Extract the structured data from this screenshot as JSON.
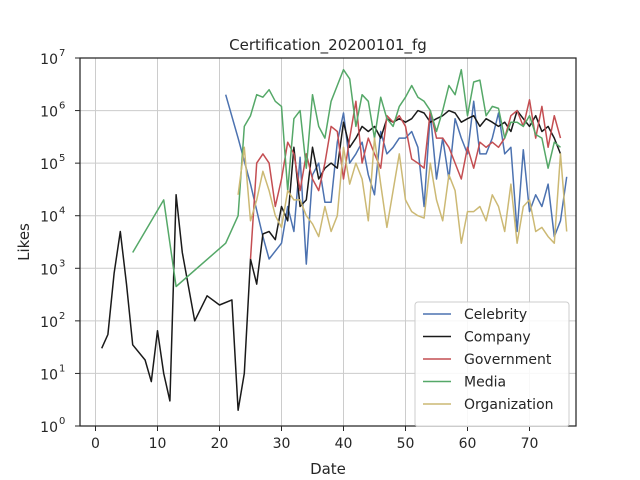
{
  "chart_data": {
    "type": "line",
    "title": "Certification_20200101_fg",
    "xlabel": "Date",
    "ylabel": "Likes",
    "yscale": "log",
    "xlim": [
      -2.5,
      77.5
    ],
    "ylim": [
      1,
      10000000
    ],
    "x_ticks": [
      0,
      10,
      20,
      30,
      40,
      50,
      60,
      70
    ],
    "y_ticks": [
      1,
      10,
      100,
      1000,
      10000,
      100000,
      1000000,
      10000000
    ],
    "y_tick_labels": [
      "10",
      "10",
      "10",
      "10",
      "10",
      "10",
      "10",
      "10"
    ],
    "y_tick_exponents": [
      "0",
      "1",
      "2",
      "3",
      "4",
      "5",
      "6",
      "7"
    ],
    "grid": true,
    "legend_position": "lower-right",
    "series": [
      {
        "name": "Celebrity",
        "color": "#4c72b0",
        "points": [
          [
            21,
            2000000
          ],
          [
            23,
            300000
          ],
          [
            25,
            40000
          ],
          [
            27,
            4000
          ],
          [
            28,
            1500
          ],
          [
            30,
            3000
          ],
          [
            31,
            15000
          ],
          [
            32,
            5000
          ],
          [
            33,
            130000
          ],
          [
            34,
            1200
          ],
          [
            35,
            60000
          ],
          [
            36,
            100000
          ],
          [
            37,
            18000
          ],
          [
            38,
            18000
          ],
          [
            39,
            250000
          ],
          [
            40,
            900000
          ],
          [
            41,
            100000
          ],
          [
            42,
            150000
          ],
          [
            43,
            250000
          ],
          [
            44,
            60000
          ],
          [
            45,
            25000
          ],
          [
            46,
            400000
          ],
          [
            47,
            150000
          ],
          [
            48,
            200000
          ],
          [
            49,
            300000
          ],
          [
            50,
            300000
          ],
          [
            51,
            400000
          ],
          [
            52,
            200000
          ],
          [
            53,
            15000
          ],
          [
            54,
            900000
          ],
          [
            55,
            50000
          ],
          [
            56,
            300000
          ],
          [
            57,
            50000
          ],
          [
            58,
            700000
          ],
          [
            59,
            300000
          ],
          [
            60,
            150000
          ],
          [
            61,
            1500000
          ],
          [
            62,
            150000
          ],
          [
            63,
            150000
          ],
          [
            64,
            300000
          ],
          [
            65,
            900000
          ],
          [
            66,
            150000
          ],
          [
            67,
            200000
          ],
          [
            68,
            5000
          ],
          [
            69,
            180000
          ],
          [
            70,
            12000
          ],
          [
            71,
            25000
          ],
          [
            72,
            15000
          ],
          [
            73,
            40000
          ],
          [
            74,
            4000
          ],
          [
            75,
            8000
          ],
          [
            76,
            55000
          ]
        ]
      },
      {
        "name": "Company",
        "color": "#1a1a1a",
        "points": [
          [
            1,
            30
          ],
          [
            2,
            55
          ],
          [
            3,
            800
          ],
          [
            4,
            5000
          ],
          [
            5,
            500
          ],
          [
            6,
            35
          ],
          [
            8,
            18
          ],
          [
            9,
            7
          ],
          [
            10,
            65
          ],
          [
            11,
            10
          ],
          [
            12,
            3
          ],
          [
            13,
            25000
          ],
          [
            14,
            2000
          ],
          [
            16,
            100
          ],
          [
            18,
            300
          ],
          [
            20,
            200
          ],
          [
            22,
            250
          ],
          [
            23,
            2
          ],
          [
            24,
            10
          ],
          [
            25,
            1500
          ],
          [
            26,
            500
          ],
          [
            27,
            4500
          ],
          [
            28,
            5000
          ],
          [
            29,
            3500
          ],
          [
            30,
            15000
          ],
          [
            31,
            8000
          ],
          [
            32,
            200000
          ],
          [
            33,
            15000
          ],
          [
            34,
            20000
          ],
          [
            35,
            200000
          ],
          [
            36,
            50000
          ],
          [
            37,
            80000
          ],
          [
            38,
            100000
          ],
          [
            39,
            80000
          ],
          [
            40,
            600000
          ],
          [
            41,
            200000
          ],
          [
            42,
            300000
          ],
          [
            43,
            500000
          ],
          [
            44,
            400000
          ],
          [
            45,
            500000
          ],
          [
            46,
            300000
          ],
          [
            47,
            700000
          ],
          [
            48,
            600000
          ],
          [
            49,
            700000
          ],
          [
            50,
            600000
          ],
          [
            51,
            700000
          ],
          [
            52,
            1000000
          ],
          [
            53,
            900000
          ],
          [
            54,
            600000
          ],
          [
            55,
            700000
          ],
          [
            56,
            800000
          ],
          [
            57,
            1000000
          ],
          [
            58,
            900000
          ],
          [
            59,
            600000
          ],
          [
            60,
            700000
          ],
          [
            61,
            800000
          ],
          [
            62,
            500000
          ],
          [
            63,
            700000
          ],
          [
            64,
            600000
          ],
          [
            65,
            500000
          ],
          [
            66,
            600000
          ],
          [
            67,
            400000
          ],
          [
            68,
            1000000
          ],
          [
            69,
            700000
          ],
          [
            70,
            500000
          ],
          [
            71,
            800000
          ],
          [
            72,
            400000
          ],
          [
            73,
            500000
          ],
          [
            74,
            300000
          ],
          [
            75,
            150000
          ]
        ]
      },
      {
        "name": "Government",
        "color": "#c44e52",
        "points": [
          [
            25,
            1500
          ],
          [
            26,
            100000
          ],
          [
            27,
            150000
          ],
          [
            28,
            100000
          ],
          [
            29,
            15000
          ],
          [
            30,
            50000
          ],
          [
            31,
            250000
          ],
          [
            32,
            150000
          ],
          [
            33,
            30000
          ],
          [
            34,
            150000
          ],
          [
            35,
            50000
          ],
          [
            36,
            30000
          ],
          [
            37,
            100000
          ],
          [
            38,
            500000
          ],
          [
            39,
            400000
          ],
          [
            40,
            50000
          ],
          [
            41,
            300000
          ],
          [
            42,
            1500000
          ],
          [
            43,
            100000
          ],
          [
            44,
            300000
          ],
          [
            45,
            150000
          ],
          [
            46,
            80000
          ],
          [
            47,
            800000
          ],
          [
            48,
            600000
          ],
          [
            49,
            800000
          ],
          [
            50,
            500000
          ],
          [
            51,
            120000
          ],
          [
            52,
            100000
          ],
          [
            53,
            80000
          ],
          [
            54,
            1000000
          ],
          [
            55,
            300000
          ],
          [
            56,
            300000
          ],
          [
            57,
            200000
          ],
          [
            58,
            100000
          ],
          [
            59,
            50000
          ],
          [
            60,
            200000
          ],
          [
            61,
            80000
          ],
          [
            62,
            250000
          ],
          [
            63,
            200000
          ],
          [
            64,
            250000
          ],
          [
            65,
            200000
          ],
          [
            66,
            300000
          ],
          [
            67,
            800000
          ],
          [
            68,
            1000000
          ],
          [
            69,
            500000
          ],
          [
            70,
            1600000
          ],
          [
            71,
            300000
          ],
          [
            72,
            1200000
          ],
          [
            73,
            200000
          ],
          [
            74,
            800000
          ],
          [
            75,
            300000
          ]
        ]
      },
      {
        "name": "Media",
        "color": "#55a868",
        "points": [
          [
            6,
            2000
          ],
          [
            11,
            20000
          ],
          [
            13,
            450
          ],
          [
            21,
            3000
          ],
          [
            23,
            10000
          ],
          [
            24,
            500000
          ],
          [
            25,
            800000
          ],
          [
            26,
            2000000
          ],
          [
            27,
            1800000
          ],
          [
            28,
            2500000
          ],
          [
            29,
            1500000
          ],
          [
            30,
            1200000
          ],
          [
            31,
            30000
          ],
          [
            32,
            700000
          ],
          [
            33,
            1000000
          ],
          [
            34,
            80000
          ],
          [
            35,
            2000000
          ],
          [
            36,
            500000
          ],
          [
            37,
            300000
          ],
          [
            38,
            1500000
          ],
          [
            39,
            3000000
          ],
          [
            40,
            6000000
          ],
          [
            41,
            4000000
          ],
          [
            42,
            500000
          ],
          [
            43,
            2000000
          ],
          [
            44,
            1500000
          ],
          [
            45,
            300000
          ],
          [
            46,
            1800000
          ],
          [
            47,
            700000
          ],
          [
            48,
            500000
          ],
          [
            49,
            1200000
          ],
          [
            50,
            1800000
          ],
          [
            51,
            3000000
          ],
          [
            52,
            1800000
          ],
          [
            53,
            1500000
          ],
          [
            54,
            1000000
          ],
          [
            55,
            400000
          ],
          [
            56,
            1000000
          ],
          [
            57,
            3000000
          ],
          [
            58,
            2000000
          ],
          [
            59,
            6000000
          ],
          [
            60,
            800000
          ],
          [
            61,
            3500000
          ],
          [
            62,
            3800000
          ],
          [
            63,
            800000
          ],
          [
            64,
            1200000
          ],
          [
            65,
            1100000
          ],
          [
            66,
            300000
          ],
          [
            67,
            600000
          ],
          [
            68,
            600000
          ],
          [
            69,
            500000
          ],
          [
            70,
            800000
          ],
          [
            71,
            350000
          ],
          [
            72,
            300000
          ],
          [
            73,
            80000
          ],
          [
            74,
            250000
          ],
          [
            75,
            200000
          ]
        ]
      },
      {
        "name": "Organization",
        "color": "#ccb974",
        "points": [
          [
            23,
            25000
          ],
          [
            24,
            200000
          ],
          [
            25,
            8000
          ],
          [
            26,
            20000
          ],
          [
            27,
            70000
          ],
          [
            28,
            30000
          ],
          [
            29,
            10000
          ],
          [
            30,
            6000
          ],
          [
            31,
            30000
          ],
          [
            32,
            20000
          ],
          [
            33,
            20000
          ],
          [
            34,
            10000
          ],
          [
            35,
            7000
          ],
          [
            36,
            4000
          ],
          [
            37,
            15000
          ],
          [
            38,
            5000
          ],
          [
            39,
            10000
          ],
          [
            40,
            200000
          ],
          [
            41,
            40000
          ],
          [
            42,
            100000
          ],
          [
            43,
            50000
          ],
          [
            44,
            8000
          ],
          [
            45,
            300000
          ],
          [
            46,
            40000
          ],
          [
            47,
            6000
          ],
          [
            48,
            30000
          ],
          [
            49,
            150000
          ],
          [
            50,
            20000
          ],
          [
            51,
            12000
          ],
          [
            52,
            10000
          ],
          [
            53,
            9000
          ],
          [
            54,
            100000
          ],
          [
            55,
            20000
          ],
          [
            56,
            8000
          ],
          [
            57,
            60000
          ],
          [
            58,
            30000
          ],
          [
            59,
            3000
          ],
          [
            60,
            12000
          ],
          [
            61,
            12000
          ],
          [
            62,
            15000
          ],
          [
            63,
            8000
          ],
          [
            64,
            25000
          ],
          [
            65,
            15000
          ],
          [
            66,
            5000
          ],
          [
            67,
            40000
          ],
          [
            68,
            3000
          ],
          [
            69,
            15000
          ],
          [
            70,
            20000
          ],
          [
            71,
            5000
          ],
          [
            72,
            6000
          ],
          [
            73,
            4000
          ],
          [
            74,
            3000
          ],
          [
            75,
            150000
          ],
          [
            76,
            5000
          ]
        ]
      }
    ]
  }
}
